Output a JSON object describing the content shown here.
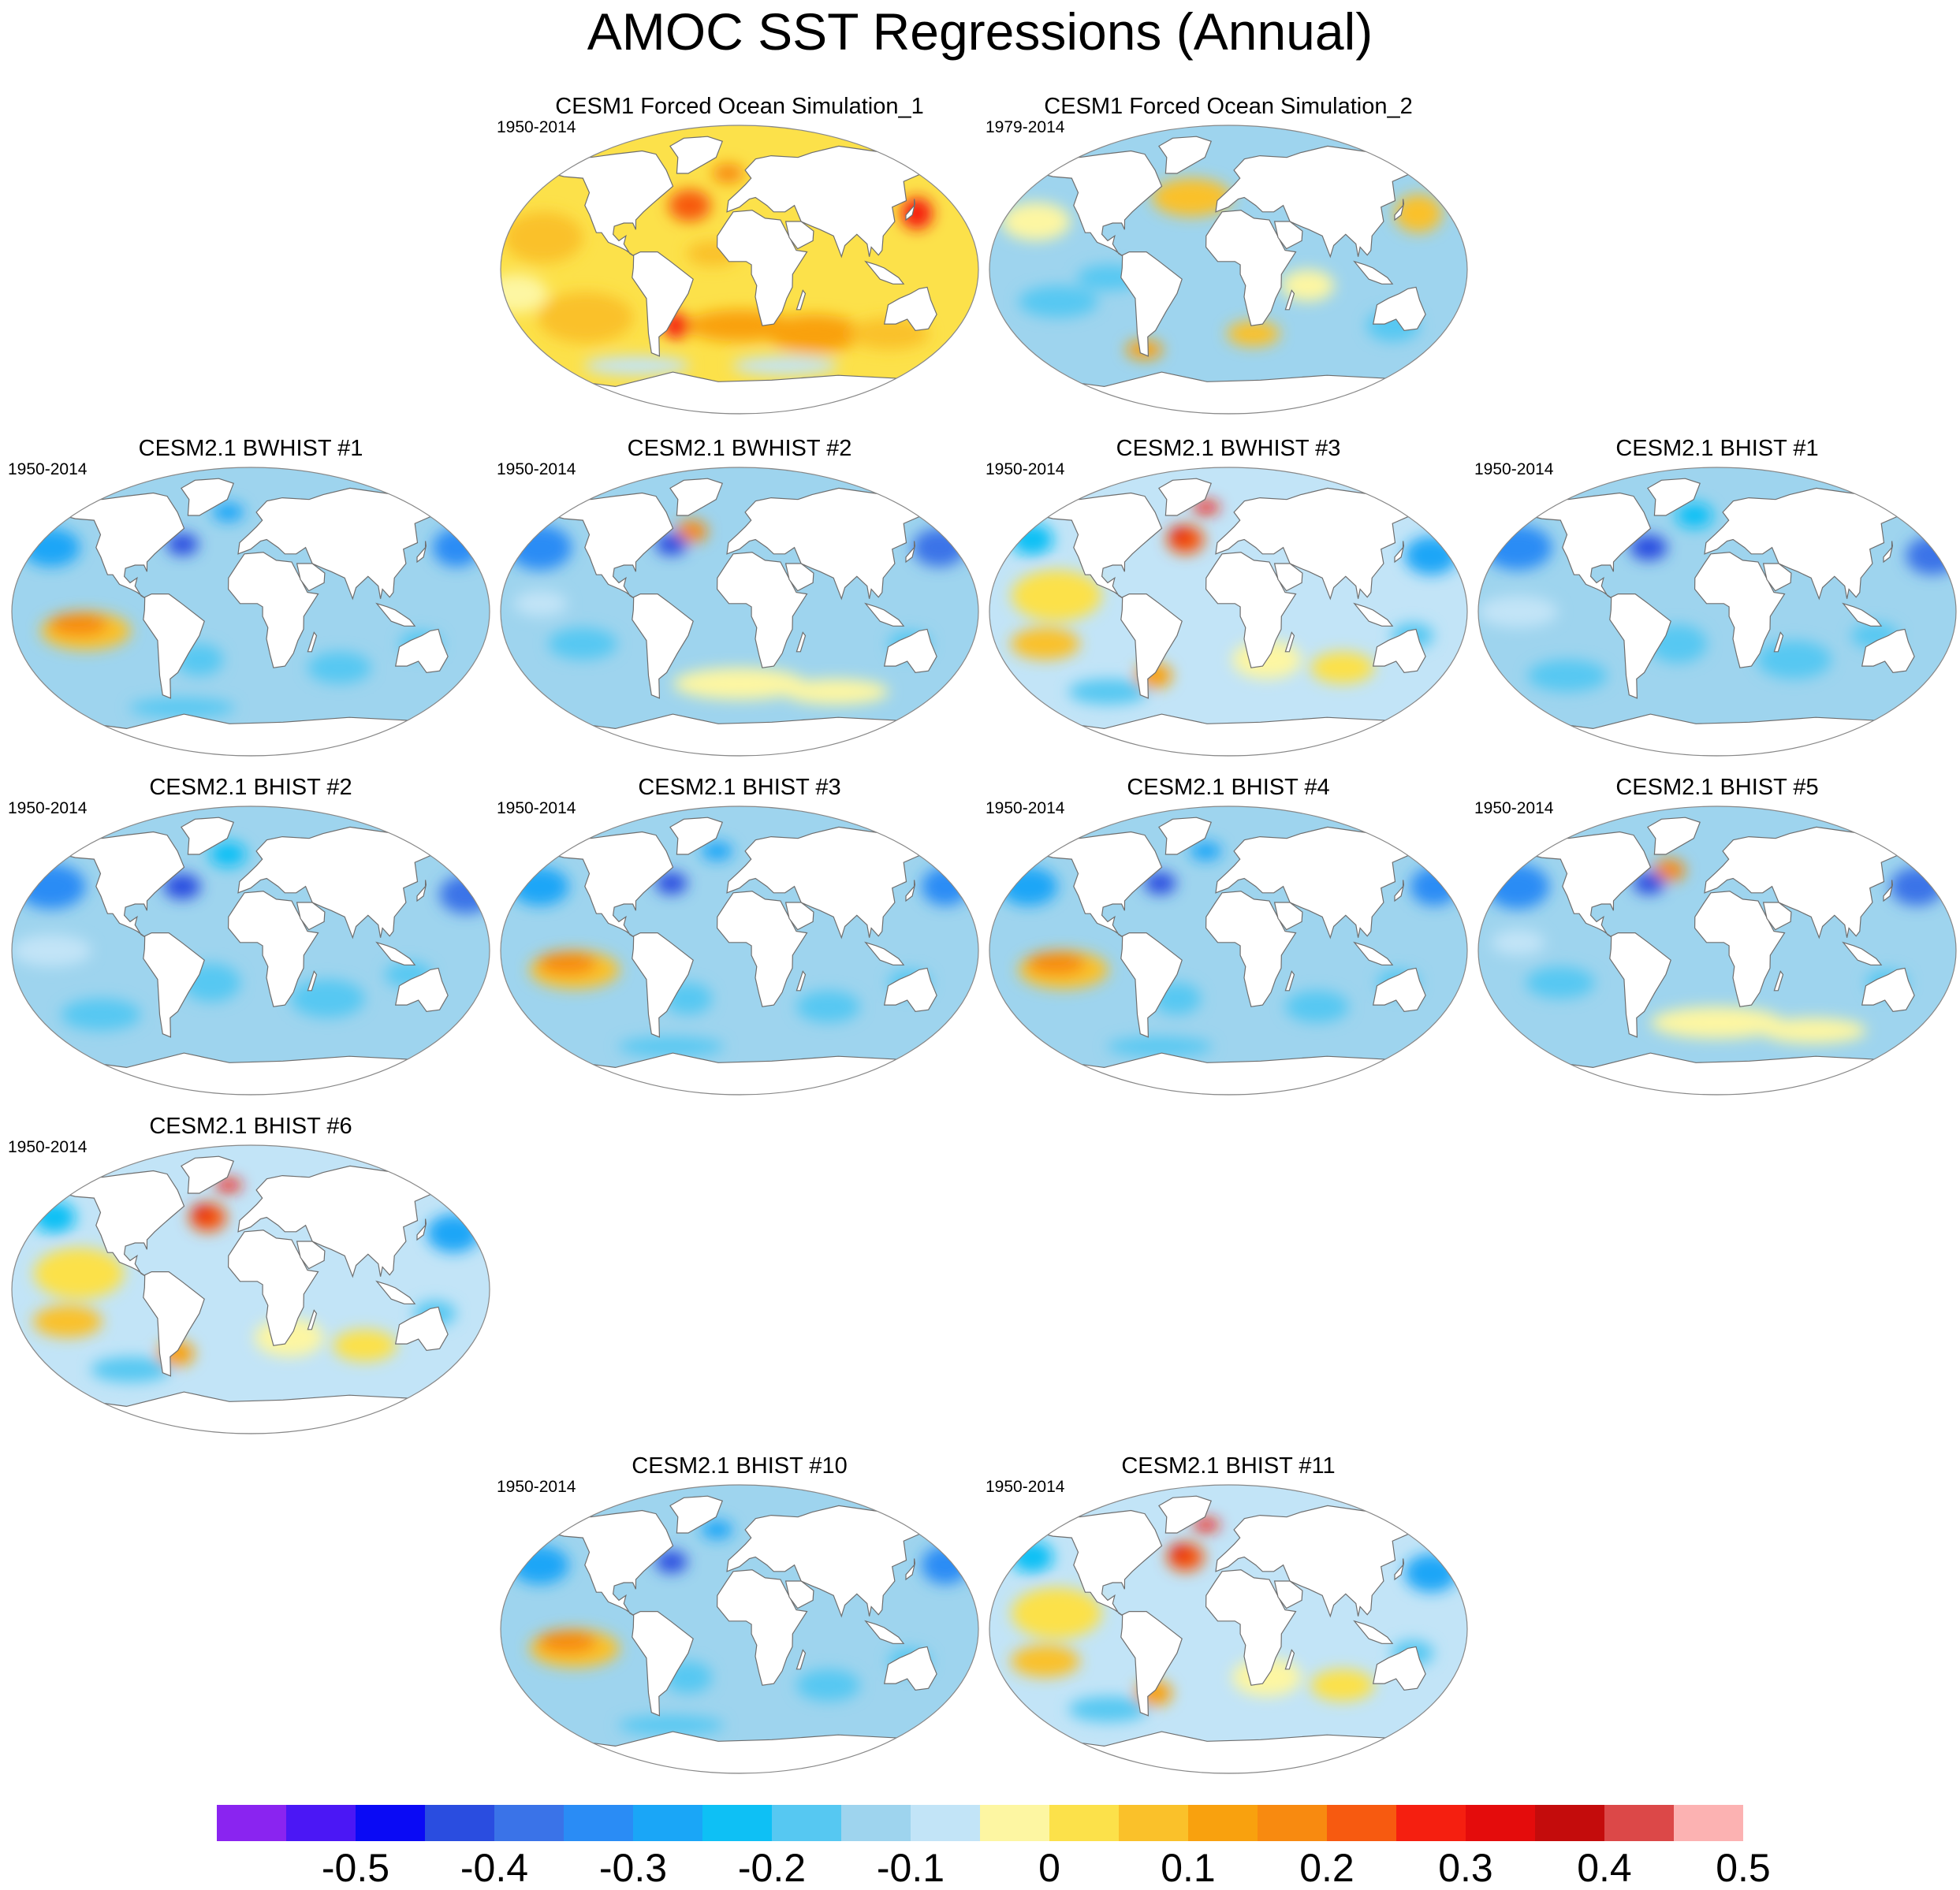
{
  "title": "AMOC SST Regressions (Annual)",
  "panels": [
    {
      "title": "CESM1 Forced Ocean Simulation_1",
      "years": "1950-2014",
      "pattern": "warm1"
    },
    {
      "title": "CESM1 Forced Ocean Simulation_2",
      "years": "1979-2014",
      "pattern": "warm2"
    },
    {
      "title": "CESM2.1 BWHIST #1",
      "years": "1950-2014",
      "pattern": "cool_pac"
    },
    {
      "title": "CESM2.1 BWHIST #2",
      "years": "1950-2014",
      "pattern": "cool_so"
    },
    {
      "title": "CESM2.1 BWHIST #3",
      "years": "1950-2014",
      "pattern": "mixed_na"
    },
    {
      "title": "CESM2.1 BHIST #1",
      "years": "1950-2014",
      "pattern": "cool"
    },
    {
      "title": "CESM2.1 BHIST #2",
      "years": "1950-2014",
      "pattern": "cool"
    },
    {
      "title": "CESM2.1 BHIST #3",
      "years": "1950-2014",
      "pattern": "cool_pac"
    },
    {
      "title": "CESM2.1 BHIST #4",
      "years": "1950-2014",
      "pattern": "cool_pac"
    },
    {
      "title": "CESM2.1 BHIST #5",
      "years": "1950-2014",
      "pattern": "cool_so"
    },
    {
      "title": "CESM2.1 BHIST #6",
      "years": "1950-2014",
      "pattern": "mixed_na"
    },
    {
      "title": "CESM2.1 BHIST #10",
      "years": "1950-2014",
      "pattern": "cool_pac"
    },
    {
      "title": "CESM2.1 BHIST #11",
      "years": "1950-2014",
      "pattern": "mixed_na"
    }
  ],
  "colorbar": {
    "labels": [
      "-0.5",
      "-0.4",
      "-0.3",
      "-0.2",
      "-0.1",
      "0",
      "0.1",
      "0.2",
      "0.3",
      "0.4",
      "0.5"
    ],
    "colors": [
      "#8a24f0",
      "#4b17f5",
      "#0a0af5",
      "#2a4de0",
      "#3a73e8",
      "#2a8cf5",
      "#1aa6f7",
      "#0ec0f5",
      "#56c8f2",
      "#9ed4ee",
      "#c2e4f7",
      "#fdf6a2",
      "#fce14a",
      "#fac12a",
      "#f9a10e",
      "#f88a10",
      "#f75a10",
      "#f51f10",
      "#e40c0c",
      "#c40c0c",
      "#dc4848",
      "#fcb2b2"
    ]
  },
  "chart_data": {
    "type": "heatmap",
    "title": "AMOC SST Regressions (Annual)",
    "projection": "Robinson (global)",
    "panels": [
      "CESM1 Forced Ocean Simulation_1",
      "CESM1 Forced Ocean Simulation_2",
      "CESM2.1 BWHIST #1",
      "CESM2.1 BWHIST #2",
      "CESM2.1 BWHIST #3",
      "CESM2.1 BHIST #1",
      "CESM2.1 BHIST #2",
      "CESM2.1 BHIST #3",
      "CESM2.1 BHIST #4",
      "CESM2.1 BHIST #5",
      "CESM2.1 BHIST #6",
      "CESM2.1 BHIST #10",
      "CESM2.1 BHIST #11"
    ],
    "periods": [
      "1950-2014",
      "1979-2014",
      "1950-2014",
      "1950-2014",
      "1950-2014",
      "1950-2014",
      "1950-2014",
      "1950-2014",
      "1950-2014",
      "1950-2014",
      "1950-2014",
      "1950-2014",
      "1950-2014"
    ],
    "colorbar_range": [
      -0.55,
      0.55
    ],
    "contour_interval": 0.05,
    "colorbar_ticks": [
      -0.5,
      -0.4,
      -0.3,
      -0.2,
      -0.1,
      0,
      0.1,
      0.2,
      0.3,
      0.4,
      0.5
    ]
  }
}
